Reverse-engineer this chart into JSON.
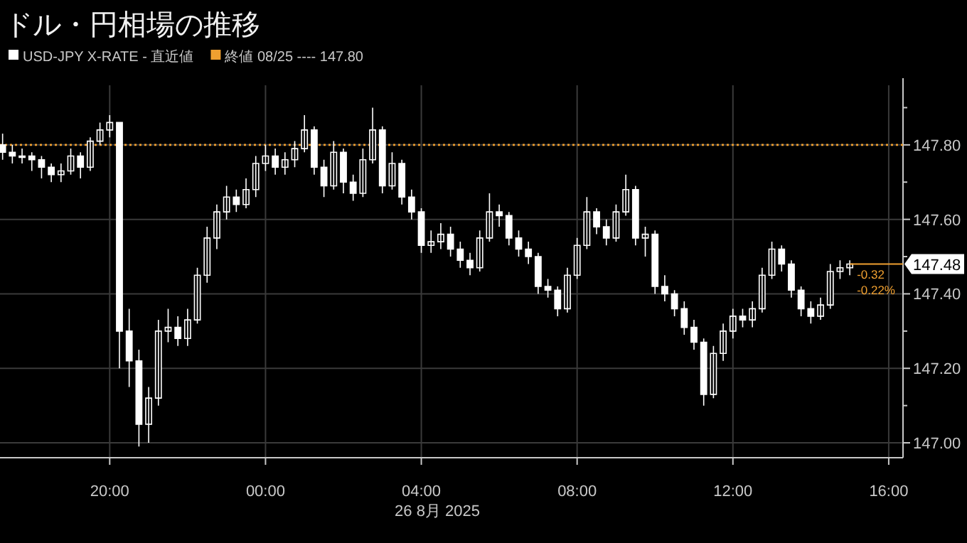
{
  "chart_data": {
    "type": "candlestick",
    "title": "ドル・円相場の推移",
    "xlabel": "26 8月 2025",
    "legend": "top left",
    "grid": true,
    "xlim": [
      "2025-08-25T17:11",
      "2025-08-26T16:22"
    ],
    "ylim": [
      146.96,
      147.96
    ],
    "xticks": [
      {
        "value": "2025-08-25T20:00",
        "label": "20:00"
      },
      {
        "value": "2025-08-26T00:00",
        "label": "00:00"
      },
      {
        "value": "2025-08-26T04:00",
        "label": "04:00"
      },
      {
        "value": "2025-08-26T08:00",
        "label": "08:00"
      },
      {
        "value": "2025-08-26T12:00",
        "label": "12:00"
      },
      {
        "value": "2025-08-26T16:00",
        "label": "16:00"
      }
    ],
    "yticks": [
      {
        "value": 147.0,
        "label": "147.00"
      },
      {
        "value": 147.1,
        "label": null
      },
      {
        "value": 147.2,
        "label": "147.20"
      },
      {
        "value": 147.3,
        "label": null
      },
      {
        "value": 147.4,
        "label": "147.40"
      },
      {
        "value": 147.5,
        "label": null
      },
      {
        "value": 147.6,
        "label": "147.60"
      },
      {
        "value": 147.7,
        "label": null
      },
      {
        "value": 147.8,
        "label": "147.80"
      },
      {
        "value": 147.9,
        "label": null
      }
    ],
    "ref_lines": [
      {
        "axis": "y",
        "value": 147.8,
        "label": "終値 08/25 ---- 147.80",
        "color": "#f0a030",
        "line_style": "dotted"
      }
    ],
    "annotations": [
      {
        "text": "147.48",
        "x": "2025-08-26T15:00",
        "y": 147.48
      },
      {
        "text": "-0.32",
        "x": "2025-08-26T15:00",
        "y": 147.48
      },
      {
        "text": "-0.22%",
        "x": "2025-08-26T15:00",
        "y": 147.48
      }
    ],
    "series": [
      {
        "name": "USD-JPY X-RATE - 直近値",
        "color": "#ffffff",
        "x": [
          "2025-08-25T17:15",
          "2025-08-25T17:30",
          "2025-08-25T17:45",
          "2025-08-25T18:00",
          "2025-08-25T18:15",
          "2025-08-25T18:30",
          "2025-08-25T18:45",
          "2025-08-25T19:00",
          "2025-08-25T19:15",
          "2025-08-25T19:30",
          "2025-08-25T19:45",
          "2025-08-25T20:00",
          "2025-08-25T20:15",
          "2025-08-25T20:30",
          "2025-08-25T20:45",
          "2025-08-25T21:00",
          "2025-08-25T21:15",
          "2025-08-25T21:30",
          "2025-08-25T21:45",
          "2025-08-25T22:00",
          "2025-08-25T22:15",
          "2025-08-25T22:30",
          "2025-08-25T22:45",
          "2025-08-25T23:00",
          "2025-08-25T23:15",
          "2025-08-25T23:30",
          "2025-08-25T23:45",
          "2025-08-26T00:00",
          "2025-08-26T00:15",
          "2025-08-26T00:30",
          "2025-08-26T00:45",
          "2025-08-26T01:00",
          "2025-08-26T01:15",
          "2025-08-26T01:30",
          "2025-08-26T01:45",
          "2025-08-26T02:00",
          "2025-08-26T02:15",
          "2025-08-26T02:30",
          "2025-08-26T02:45",
          "2025-08-26T03:00",
          "2025-08-26T03:15",
          "2025-08-26T03:30",
          "2025-08-26T03:45",
          "2025-08-26T04:00",
          "2025-08-26T04:15",
          "2025-08-26T04:30",
          "2025-08-26T04:45",
          "2025-08-26T05:00",
          "2025-08-26T05:15",
          "2025-08-26T05:30",
          "2025-08-26T05:45",
          "2025-08-26T06:00",
          "2025-08-26T06:15",
          "2025-08-26T06:30",
          "2025-08-26T06:45",
          "2025-08-26T07:00",
          "2025-08-26T07:15",
          "2025-08-26T07:30",
          "2025-08-26T07:45",
          "2025-08-26T08:00",
          "2025-08-26T08:15",
          "2025-08-26T08:30",
          "2025-08-26T08:45",
          "2025-08-26T09:00",
          "2025-08-26T09:15",
          "2025-08-26T09:30",
          "2025-08-26T09:45",
          "2025-08-26T10:00",
          "2025-08-26T10:15",
          "2025-08-26T10:30",
          "2025-08-26T10:45",
          "2025-08-26T11:00",
          "2025-08-26T11:15",
          "2025-08-26T11:30",
          "2025-08-26T11:45",
          "2025-08-26T12:00",
          "2025-08-26T12:15",
          "2025-08-26T12:30",
          "2025-08-26T12:45",
          "2025-08-26T13:00",
          "2025-08-26T13:15",
          "2025-08-26T13:30",
          "2025-08-26T13:45",
          "2025-08-26T14:00",
          "2025-08-26T14:15",
          "2025-08-26T14:30",
          "2025-08-26T14:45",
          "2025-08-26T15:00"
        ],
        "ohlc": [
          [
            147.8,
            147.83,
            147.76,
            147.78
          ],
          [
            147.78,
            147.8,
            147.75,
            147.77
          ],
          [
            147.77,
            147.79,
            147.75,
            147.77
          ],
          [
            147.77,
            147.78,
            147.73,
            147.76
          ],
          [
            147.76,
            147.77,
            147.71,
            147.74
          ],
          [
            147.74,
            147.75,
            147.7,
            147.72
          ],
          [
            147.72,
            147.75,
            147.7,
            147.73
          ],
          [
            147.73,
            147.79,
            147.72,
            147.77
          ],
          [
            147.77,
            147.78,
            147.71,
            147.74
          ],
          [
            147.74,
            147.82,
            147.73,
            147.81
          ],
          [
            147.81,
            147.86,
            147.8,
            147.84
          ],
          [
            147.84,
            147.88,
            147.82,
            147.86
          ],
          [
            147.86,
            147.86,
            147.2,
            147.3
          ],
          [
            147.3,
            147.36,
            147.15,
            147.22
          ],
          [
            147.22,
            147.25,
            146.99,
            147.05
          ],
          [
            147.05,
            147.15,
            147.0,
            147.12
          ],
          [
            147.12,
            147.33,
            147.1,
            147.3
          ],
          [
            147.3,
            147.36,
            147.27,
            147.31
          ],
          [
            147.31,
            147.34,
            147.26,
            147.28
          ],
          [
            147.28,
            147.36,
            147.26,
            147.33
          ],
          [
            147.33,
            147.47,
            147.32,
            147.45
          ],
          [
            147.45,
            147.58,
            147.43,
            147.55
          ],
          [
            147.55,
            147.64,
            147.52,
            147.62
          ],
          [
            147.62,
            147.69,
            147.6,
            147.66
          ],
          [
            147.66,
            147.68,
            147.62,
            147.64
          ],
          [
            147.64,
            147.71,
            147.63,
            147.68
          ],
          [
            147.68,
            147.77,
            147.66,
            147.75
          ],
          [
            147.75,
            147.8,
            147.73,
            147.77
          ],
          [
            147.77,
            147.79,
            147.72,
            147.74
          ],
          [
            147.74,
            147.78,
            147.72,
            147.76
          ],
          [
            147.76,
            147.81,
            147.74,
            147.79
          ],
          [
            147.79,
            147.88,
            147.78,
            147.84
          ],
          [
            147.84,
            147.85,
            147.72,
            147.74
          ],
          [
            147.74,
            147.76,
            147.66,
            147.69
          ],
          [
            147.69,
            147.81,
            147.68,
            147.78
          ],
          [
            147.78,
            147.79,
            147.67,
            147.7
          ],
          [
            147.7,
            147.72,
            147.65,
            147.67
          ],
          [
            147.67,
            147.79,
            147.66,
            147.76
          ],
          [
            147.76,
            147.9,
            147.75,
            147.84
          ],
          [
            147.84,
            147.85,
            147.67,
            147.69
          ],
          [
            147.69,
            147.78,
            147.68,
            147.75
          ],
          [
            147.75,
            147.76,
            147.64,
            147.66
          ],
          [
            147.66,
            147.68,
            147.6,
            147.62
          ],
          [
            147.62,
            147.63,
            147.51,
            147.53
          ],
          [
            147.53,
            147.57,
            147.51,
            147.54
          ],
          [
            147.54,
            147.59,
            147.52,
            147.56
          ],
          [
            147.56,
            147.58,
            147.5,
            147.52
          ],
          [
            147.52,
            147.54,
            147.47,
            147.49
          ],
          [
            147.49,
            147.51,
            147.45,
            147.47
          ],
          [
            147.47,
            147.57,
            147.46,
            147.55
          ],
          [
            147.55,
            147.67,
            147.54,
            147.62
          ],
          [
            147.62,
            147.64,
            147.58,
            147.61
          ],
          [
            147.61,
            147.62,
            147.53,
            147.55
          ],
          [
            147.55,
            147.57,
            147.5,
            147.52
          ],
          [
            147.52,
            147.54,
            147.48,
            147.5
          ],
          [
            147.5,
            147.51,
            147.4,
            147.42
          ],
          [
            147.42,
            147.44,
            147.39,
            147.41
          ],
          [
            147.41,
            147.42,
            147.34,
            147.36
          ],
          [
            147.36,
            147.47,
            147.35,
            147.45
          ],
          [
            147.45,
            147.55,
            147.44,
            147.53
          ],
          [
            147.53,
            147.66,
            147.52,
            147.62
          ],
          [
            147.62,
            147.63,
            147.56,
            147.58
          ],
          [
            147.58,
            147.6,
            147.53,
            147.55
          ],
          [
            147.55,
            147.64,
            147.54,
            147.62
          ],
          [
            147.62,
            147.72,
            147.61,
            147.68
          ],
          [
            147.68,
            147.69,
            147.53,
            147.55
          ],
          [
            147.55,
            147.58,
            147.5,
            147.56
          ],
          [
            147.56,
            147.57,
            147.4,
            147.42
          ],
          [
            147.42,
            147.45,
            147.38,
            147.4
          ],
          [
            147.4,
            147.41,
            147.34,
            147.36
          ],
          [
            147.36,
            147.38,
            147.29,
            147.31
          ],
          [
            147.31,
            147.33,
            147.25,
            147.27
          ],
          [
            147.27,
            147.28,
            147.1,
            147.13
          ],
          [
            147.13,
            147.26,
            147.12,
            147.24
          ],
          [
            147.24,
            147.32,
            147.22,
            147.3
          ],
          [
            147.3,
            147.36,
            147.28,
            147.34
          ],
          [
            147.34,
            147.36,
            147.31,
            147.33
          ],
          [
            147.33,
            147.38,
            147.31,
            147.36
          ],
          [
            147.36,
            147.47,
            147.35,
            147.45
          ],
          [
            147.45,
            147.54,
            147.44,
            147.52
          ],
          [
            147.52,
            147.53,
            147.46,
            147.48
          ],
          [
            147.48,
            147.49,
            147.39,
            147.41
          ],
          [
            147.41,
            147.42,
            147.34,
            147.36
          ],
          [
            147.36,
            147.38,
            147.32,
            147.34
          ],
          [
            147.34,
            147.39,
            147.33,
            147.37
          ],
          [
            147.37,
            147.48,
            147.36,
            147.46
          ],
          [
            147.46,
            147.49,
            147.44,
            147.47
          ],
          [
            147.47,
            147.49,
            147.45,
            147.48
          ]
        ]
      }
    ]
  }
}
